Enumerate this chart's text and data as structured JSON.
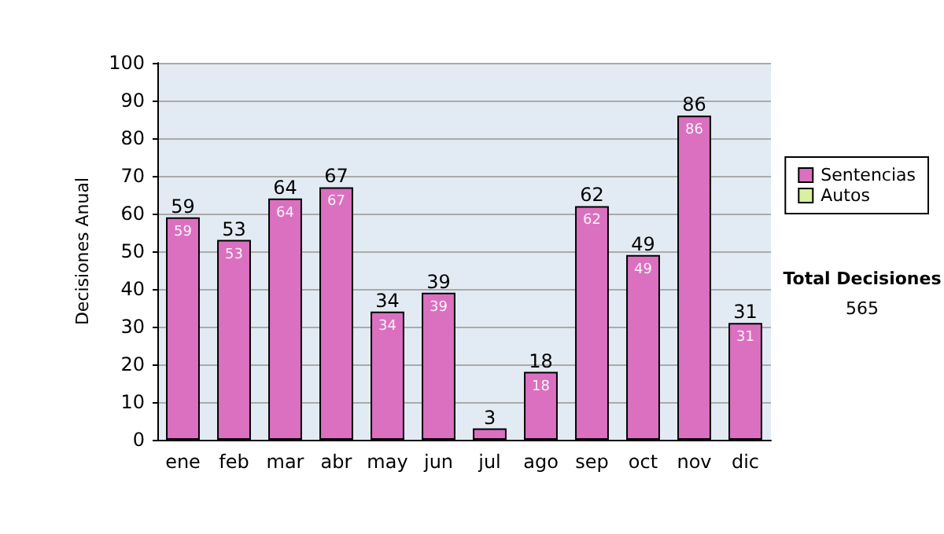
{
  "chart_data": {
    "type": "bar",
    "ylabel": "Decisiones Anual",
    "categories": [
      "ene",
      "feb",
      "mar",
      "abr",
      "may",
      "jun",
      "jul",
      "ago",
      "sep",
      "oct",
      "nov",
      "dic"
    ],
    "series": [
      {
        "name": "Sentencias",
        "color": "#db70c0",
        "values": [
          59,
          53,
          64,
          67,
          34,
          39,
          3,
          18,
          62,
          49,
          86,
          31
        ],
        "value_labels": [
          "59",
          "53",
          "64",
          "67",
          "34",
          "39",
          null,
          "18",
          "62",
          "49",
          "86",
          "31"
        ]
      },
      {
        "name": "Autos",
        "color": "#d8f0a0",
        "values": [
          0,
          0,
          0,
          0,
          0,
          0,
          0,
          0,
          0,
          0,
          0,
          0
        ]
      }
    ],
    "stacked": true,
    "totals": [
      "59",
      "53",
      "64",
      "67",
      "34",
      "39",
      "3",
      "18",
      "62",
      "49",
      "86",
      "31"
    ],
    "ylim": [
      0,
      100
    ],
    "yticks": [
      0,
      10,
      20,
      30,
      40,
      50,
      60,
      70,
      80,
      90,
      100
    ],
    "grid": "y",
    "legend": "right",
    "annotations": [
      "Total Decisiones",
      "565"
    ]
  }
}
